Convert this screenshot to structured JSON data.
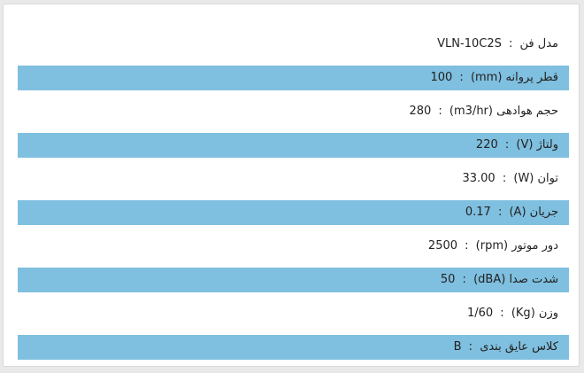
{
  "colors": {
    "row_highlight": "#7fbfdf",
    "text": "#222222"
  },
  "specs": [
    {
      "label": "مدل فن",
      "value": "VLN-10C2S"
    },
    {
      "label": "قطر پروانه (mm)",
      "value": "100"
    },
    {
      "label": "حجم هوادهی (m3/hr)",
      "value": "280"
    },
    {
      "label": "ولتاژ (V)",
      "value": "220"
    },
    {
      "label": "توان (W)",
      "value": "33.00"
    },
    {
      "label": "جریان (A)",
      "value": "0.17"
    },
    {
      "label": "دور موتور (rpm)",
      "value": "2500"
    },
    {
      "label": "شدت صدا (dBA)",
      "value": "50"
    },
    {
      "label": "وزن (Kg)",
      "value": "1/60"
    },
    {
      "label": "کلاس عایق بندی",
      "value": "B"
    }
  ]
}
